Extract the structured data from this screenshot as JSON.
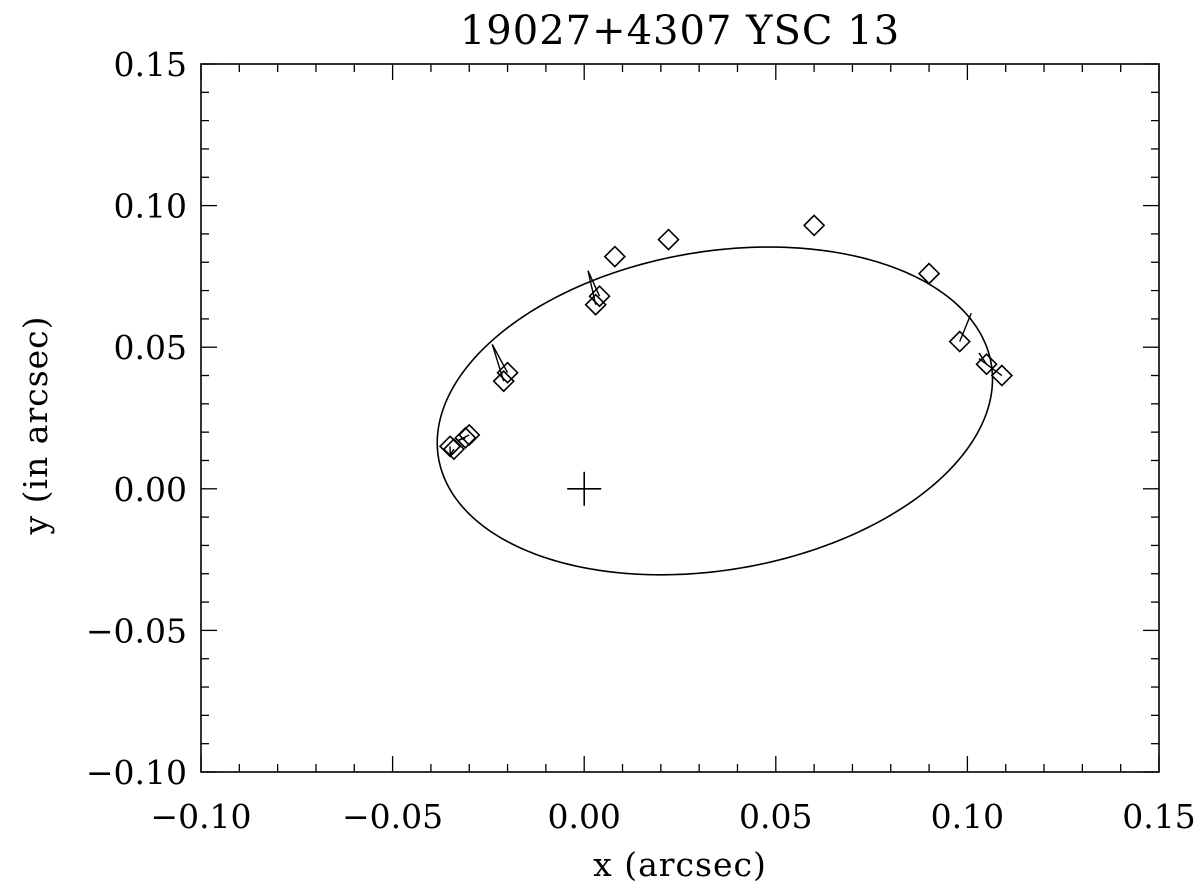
{
  "chart_data": {
    "type": "scatter",
    "title": "19027+4307 YSC 13",
    "xlabel": "x (arcsec)",
    "ylabel": "y (in arcsec)",
    "xlim": [
      -0.1,
      0.15
    ],
    "ylim": [
      -0.1,
      0.15
    ],
    "xticks": [
      -0.1,
      -0.05,
      0.0,
      0.05,
      0.1,
      0.15
    ],
    "xtick_labels": [
      "−0.10",
      "−0.05",
      "0.00",
      "0.05",
      "0.10",
      "0.15"
    ],
    "yticks": [
      -0.1,
      -0.05,
      0.0,
      0.05,
      0.1,
      0.15
    ],
    "ytick_labels": [
      "−0.10",
      "−0.05",
      "0.00",
      "0.05",
      "0.10",
      "0.15"
    ],
    "x_minor_step": 0.01,
    "y_minor_step": 0.01,
    "grid": false,
    "primary": {
      "x": 0.0,
      "y": 0.0,
      "marker": "plus"
    },
    "orbit": {
      "center_x": 0.0341,
      "center_y": 0.0275,
      "semi_major": 0.0745,
      "semi_minor": 0.0552,
      "angle_deg": 20.3
    },
    "series": [
      {
        "marker": "diamond",
        "x": [
          0.06,
          0.09,
          0.098,
          0.105,
          0.109,
          0.022,
          0.008,
          0.004,
          0.003,
          -0.02,
          -0.021,
          -0.03,
          -0.031,
          -0.035,
          -0.034
        ],
        "y": [
          0.093,
          0.076,
          0.052,
          0.044,
          0.04,
          0.088,
          0.082,
          0.068,
          0.065,
          0.041,
          0.038,
          0.019,
          0.018,
          0.015,
          0.014
        ],
        "residual_x": [
          0.06,
          0.09,
          0.101,
          0.103,
          0.103,
          0.022,
          0.008,
          0.001,
          0.001,
          -0.024,
          -0.024,
          -0.033,
          -0.033,
          -0.035,
          -0.035
        ],
        "residual_y": [
          0.093,
          0.076,
          0.062,
          0.048,
          0.046,
          0.088,
          0.082,
          0.077,
          0.077,
          0.051,
          0.051,
          0.017,
          0.017,
          0.012,
          0.012
        ]
      }
    ]
  }
}
